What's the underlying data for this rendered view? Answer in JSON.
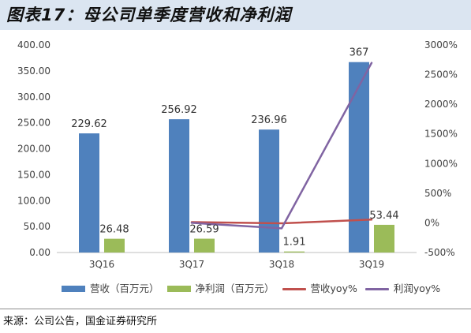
{
  "theme": {
    "title_bar_bg": "#dbe5f1"
  },
  "chart_data": {
    "type": "bar",
    "title": "图表17：母公司单季度营收和净利润",
    "categories": [
      "3Q16",
      "3Q17",
      "3Q18",
      "3Q19"
    ],
    "series": [
      {
        "name": "营收（百万元）",
        "type": "bar",
        "y_axis": "left",
        "color": "#4f81bd",
        "values": [
          229.62,
          256.92,
          236.96,
          367
        ]
      },
      {
        "name": "净利润（百万元）",
        "type": "bar",
        "y_axis": "left",
        "color": "#9bbb59",
        "values": [
          26.48,
          26.59,
          1.91,
          53.44
        ]
      },
      {
        "name": "营收yoy%",
        "type": "line",
        "y_axis": "right",
        "color": "#c0504d",
        "values": [
          null,
          12,
          -8,
          55
        ]
      },
      {
        "name": "利润yoy%",
        "type": "line",
        "y_axis": "right",
        "color": "#8064a2",
        "values": [
          null,
          0,
          -93,
          2698
        ]
      }
    ],
    "y_left": {
      "min": 0,
      "max": 400,
      "tick_labels": [
        "0.00",
        "50.00",
        "100.00",
        "150.00",
        "200.00",
        "250.00",
        "300.00",
        "350.00",
        "400.00"
      ]
    },
    "y_right": {
      "min": -500,
      "max": 3000,
      "tick_labels": [
        "-500%",
        "0%",
        "500%",
        "1000%",
        "1500%",
        "2000%",
        "2500%",
        "3000%"
      ]
    },
    "data_labels": "bars",
    "grid": false,
    "legend": "bottom"
  },
  "footer": {
    "source": "来源：公司公告，国金证券研究所"
  }
}
